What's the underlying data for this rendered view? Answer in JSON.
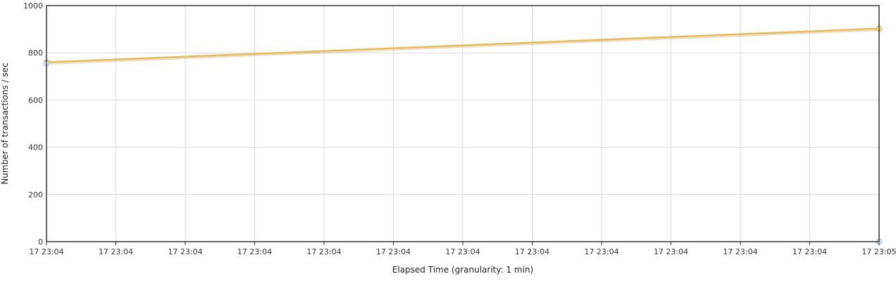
{
  "chart_data": {
    "type": "line",
    "title": "",
    "xlabel": "Elapsed Time (granularity: 1 min)",
    "ylabel": "Number of transactions / sec",
    "ylim": [
      0,
      1000
    ],
    "y_ticks": [
      0,
      200,
      400,
      600,
      800,
      1000
    ],
    "x_ticks": [
      "17 23:04",
      "17 23:04",
      "17 23:04",
      "17 23:04",
      "17 23:04",
      "17 23:04",
      "17 23:04",
      "17 23:04",
      "17 23:04",
      "17 23:04",
      "17 23:04",
      "17 23:04",
      "17 23:05"
    ],
    "grid": true,
    "legend": "none",
    "series": [
      {
        "color": "#f5b942",
        "x": [
          "17 23:04",
          "17 23:05"
        ],
        "values": [
          760,
          903
        ],
        "point_indices": [
          0,
          12
        ]
      },
      {
        "color": "#a9cce8",
        "x": [
          "17 23:04",
          "17 23:05"
        ],
        "values": [
          756,
          0
        ],
        "point_indices": [
          0,
          12
        ],
        "show_line": false
      }
    ]
  }
}
